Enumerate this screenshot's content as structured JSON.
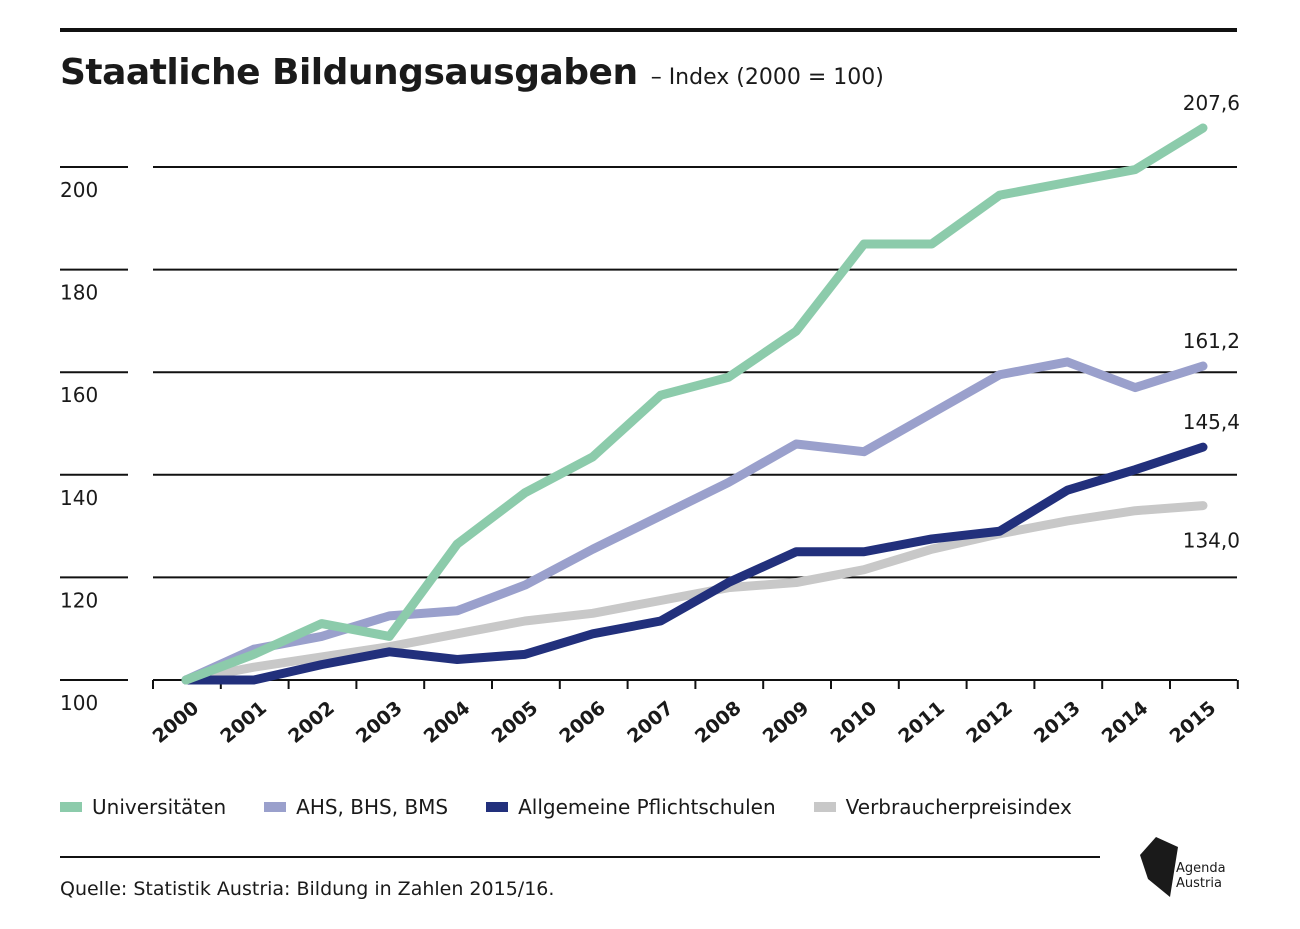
{
  "header": {
    "title": "Staatliche Bildungsausgaben",
    "subtitle": "– Index (2000 = 100)"
  },
  "footer": {
    "source": "Quelle: Statistik Austria: Bildung in Zahlen 2015/16."
  },
  "logo": {
    "line1": "Agenda",
    "line2": "Austria"
  },
  "chart_data": {
    "type": "line",
    "title": "Staatliche Bildungsausgaben",
    "subtitle": "– Index (2000 = 100)",
    "xlabel": "",
    "ylabel": "",
    "categories": [
      "2000",
      "2001",
      "2002",
      "2003",
      "2004",
      "2005",
      "2006",
      "2007",
      "2008",
      "2009",
      "2010",
      "2011",
      "2012",
      "2013",
      "2014",
      "2015"
    ],
    "ylim": [
      100,
      210
    ],
    "yticks": [
      100,
      120,
      140,
      160,
      180,
      200
    ],
    "grid": true,
    "legend_position": "bottom",
    "series": [
      {
        "name": "Universitäten",
        "color": "#8ccbab",
        "values": [
          100,
          105,
          111,
          108.5,
          126.5,
          136.5,
          143.5,
          155.5,
          159,
          168,
          185,
          185,
          194.5,
          197,
          199.5,
          207.6
        ],
        "end_label": "207,6"
      },
      {
        "name": "AHS, BHS, BMS",
        "color": "#9aa0cc",
        "values": [
          100,
          106,
          108.5,
          112.5,
          113.5,
          118.5,
          125.5,
          132,
          138.5,
          146,
          144.5,
          152,
          159.5,
          162,
          157,
          161.2
        ],
        "end_label": "161,2"
      },
      {
        "name": "Allgemeine Pflichtschulen",
        "color": "#22307c",
        "values": [
          100,
          100,
          103,
          105.5,
          104,
          105,
          109,
          111.5,
          119,
          125,
          125,
          127.5,
          129,
          137,
          141,
          145.4
        ],
        "end_label": "145,4"
      },
      {
        "name": "Verbraucherpreisindex",
        "color": "#c8c8c8",
        "values": [
          100,
          102.5,
          104.5,
          106.5,
          109,
          111.5,
          113,
          115.5,
          118,
          119,
          121.5,
          125.5,
          128.5,
          131,
          133,
          134.0
        ],
        "end_label": "134,0"
      }
    ]
  }
}
